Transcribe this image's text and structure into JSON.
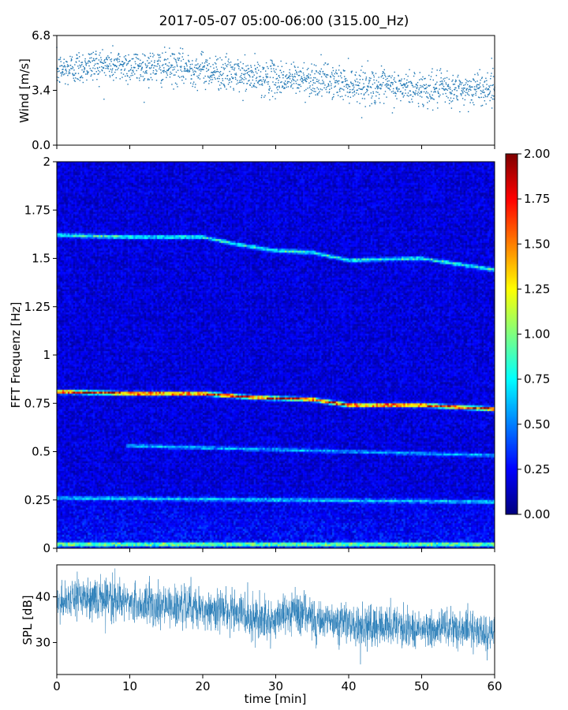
{
  "title": "2017-05-07 05:00-06:00 (315.00_Hz)",
  "chart_data": [
    {
      "type": "scatter",
      "panel": "wind",
      "ylabel": "Wind [m/s]",
      "ylim": [
        0.0,
        6.8
      ],
      "xlim": [
        0,
        60
      ],
      "yticks": [
        "0.0",
        "3.4",
        "6.8"
      ],
      "yticks_values": [
        0.0,
        3.4,
        6.8
      ],
      "marker_color": "#1f77b4",
      "n_points": 1800,
      "trend": [
        {
          "t": 0,
          "v": 4.6
        },
        {
          "t": 5,
          "v": 5.0
        },
        {
          "t": 10,
          "v": 4.9
        },
        {
          "t": 15,
          "v": 4.8
        },
        {
          "t": 20,
          "v": 4.7
        },
        {
          "t": 25,
          "v": 4.3
        },
        {
          "t": 30,
          "v": 4.1
        },
        {
          "t": 35,
          "v": 4.1
        },
        {
          "t": 40,
          "v": 3.8
        },
        {
          "t": 45,
          "v": 3.6
        },
        {
          "t": 50,
          "v": 3.5
        },
        {
          "t": 55,
          "v": 3.4
        },
        {
          "t": 60,
          "v": 3.6
        }
      ],
      "spread": 0.7
    },
    {
      "type": "heatmap",
      "panel": "spectrogram",
      "ylabel": "FFT Frequenz [Hz]",
      "xlim": [
        0,
        60
      ],
      "ylim": [
        0,
        2
      ],
      "yticks": [
        "0",
        "0.25",
        "0.5",
        "0.75",
        "1",
        "1.25",
        "1.5",
        "1.75",
        "2"
      ],
      "yticks_values": [
        0,
        0.25,
        0.5,
        0.75,
        1.0,
        1.25,
        1.5,
        1.75,
        2.0
      ],
      "colormap": "jet",
      "colorbar": {
        "vmin": 0.0,
        "vmax": 2.0,
        "ticks": [
          "0.00",
          "0.25",
          "0.50",
          "0.75",
          "1.00",
          "1.25",
          "1.50",
          "1.75",
          "2.00"
        ],
        "ticks_values": [
          0.0,
          0.25,
          0.5,
          0.75,
          1.0,
          1.25,
          1.5,
          1.75,
          2.0
        ]
      },
      "background_level": 0.18,
      "ridges": [
        {
          "points": [
            [
              0,
              0.81
            ],
            [
              10,
              0.8
            ],
            [
              20,
              0.8
            ],
            [
              27,
              0.78
            ],
            [
              35,
              0.77
            ],
            [
              40,
              0.74
            ],
            [
              50,
              0.74
            ],
            [
              60,
              0.72
            ]
          ],
          "peak": 1.85
        },
        {
          "points": [
            [
              0,
              1.62
            ],
            [
              10,
              1.61
            ],
            [
              20,
              1.61
            ],
            [
              25,
              1.57
            ],
            [
              30,
              1.54
            ],
            [
              35,
              1.53
            ],
            [
              40,
              1.49
            ],
            [
              50,
              1.5
            ],
            [
              60,
              1.44
            ]
          ],
          "peak": 0.75
        },
        {
          "points": [
            [
              0,
              0.26
            ],
            [
              60,
              0.24
            ]
          ],
          "peak": 0.55
        },
        {
          "points": [
            [
              10,
              0.53
            ],
            [
              30,
              0.51
            ],
            [
              60,
              0.48
            ]
          ],
          "peak": 0.5
        },
        {
          "points": [
            [
              0,
              0.02
            ],
            [
              60,
              0.02
            ]
          ],
          "peak": 0.95
        }
      ]
    },
    {
      "type": "line",
      "panel": "spl",
      "ylabel": "SPL [dB]",
      "xlabel": "time [min]",
      "xlim": [
        0,
        60
      ],
      "ylim": [
        23,
        47
      ],
      "yticks": [
        "30",
        "40"
      ],
      "yticks_values": [
        30,
        40
      ],
      "xticks": [
        "0",
        "10",
        "20",
        "30",
        "40",
        "50",
        "60"
      ],
      "xticks_values": [
        0,
        10,
        20,
        30,
        40,
        50,
        60
      ],
      "line_color": "#1f77b4",
      "n_points": 2400,
      "trend": [
        {
          "t": 0,
          "v": 39
        },
        {
          "t": 5,
          "v": 39.5
        },
        {
          "t": 10,
          "v": 38.5
        },
        {
          "t": 15,
          "v": 38
        },
        {
          "t": 20,
          "v": 37.5
        },
        {
          "t": 25,
          "v": 36.5
        },
        {
          "t": 30,
          "v": 35
        },
        {
          "t": 33,
          "v": 37
        },
        {
          "t": 35,
          "v": 35
        },
        {
          "t": 40,
          "v": 34
        },
        {
          "t": 45,
          "v": 33.5
        },
        {
          "t": 50,
          "v": 33
        },
        {
          "t": 55,
          "v": 33
        },
        {
          "t": 60,
          "v": 32
        }
      ],
      "spread": 2.5
    }
  ]
}
